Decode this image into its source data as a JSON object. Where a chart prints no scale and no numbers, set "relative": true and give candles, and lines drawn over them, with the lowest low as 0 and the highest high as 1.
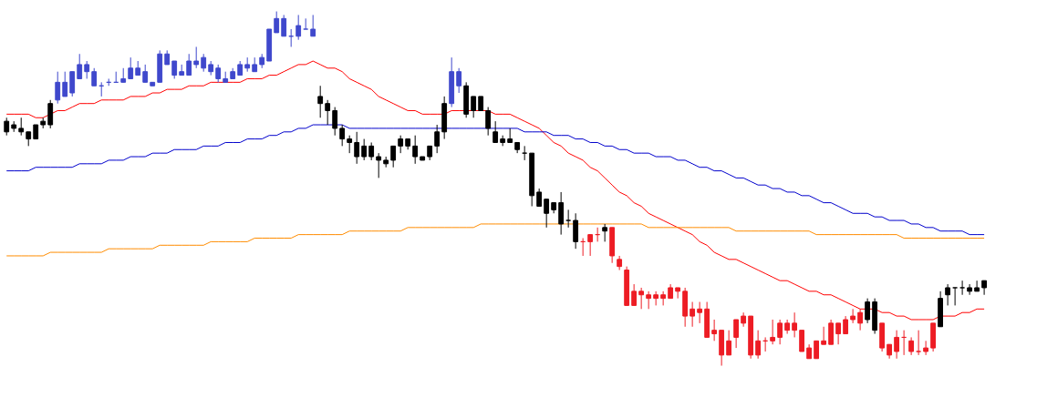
{
  "chart_data": {
    "type": "candlestick",
    "relative": true,
    "categories": [
      null,
      null,
      null,
      null,
      null,
      null,
      null,
      null,
      null,
      null,
      null,
      null,
      null,
      null,
      null,
      null,
      null,
      null,
      null,
      null,
      null,
      null,
      null,
      null,
      null,
      null,
      null,
      null,
      null,
      null,
      null,
      null,
      null,
      null,
      null,
      null,
      null,
      null,
      null,
      null,
      null,
      null,
      null,
      null,
      null,
      null,
      null,
      null,
      null,
      null,
      null,
      null,
      null,
      null,
      null,
      null,
      null,
      null,
      null,
      null,
      null,
      null,
      null,
      null,
      null,
      null,
      null,
      null,
      null,
      null,
      null,
      null,
      null,
      null,
      null,
      null,
      null,
      null,
      null,
      null,
      null,
      null,
      null,
      null,
      null,
      null,
      null,
      null,
      null,
      null,
      null,
      null,
      null,
      null,
      null,
      null,
      null,
      null,
      null,
      null,
      null,
      null,
      null,
      null,
      null,
      null,
      null,
      null,
      null,
      null,
      null,
      null,
      null,
      null,
      null,
      null,
      null,
      null,
      null,
      null,
      null,
      null,
      null,
      null,
      null,
      null,
      null,
      null,
      null,
      null,
      null,
      null,
      null,
      null,
      null
    ],
    "ohlc": [
      [
        0.69,
        0.7,
        0.65,
        0.66
      ],
      [
        0.68,
        0.69,
        0.66,
        0.67
      ],
      [
        0.67,
        0.7,
        0.65,
        0.66
      ],
      [
        0.66,
        0.66,
        0.62,
        0.64
      ],
      [
        0.68,
        0.68,
        0.64,
        0.64
      ],
      [
        0.69,
        0.7,
        0.67,
        0.68
      ],
      [
        0.74,
        0.75,
        0.67,
        0.68
      ],
      [
        0.75,
        0.83,
        0.74,
        0.8
      ],
      [
        0.76,
        0.83,
        0.76,
        0.8
      ],
      [
        0.77,
        0.83,
        0.76,
        0.83
      ],
      [
        0.81,
        0.88,
        0.81,
        0.85
      ],
      [
        0.83,
        0.86,
        0.81,
        0.85
      ],
      [
        0.79,
        0.84,
        0.79,
        0.83
      ],
      [
        0.79,
        0.8,
        0.76,
        0.79
      ],
      [
        0.8,
        0.81,
        0.79,
        0.8
      ],
      [
        0.8,
        0.83,
        0.8,
        0.8
      ],
      [
        0.8,
        0.84,
        0.8,
        0.81
      ],
      [
        0.81,
        0.87,
        0.81,
        0.84
      ],
      [
        0.82,
        0.86,
        0.82,
        0.84
      ],
      [
        0.8,
        0.85,
        0.8,
        0.83
      ],
      [
        0.79,
        0.8,
        0.79,
        0.8
      ],
      [
        0.8,
        0.89,
        0.8,
        0.88
      ],
      [
        0.85,
        0.89,
        0.85,
        0.88
      ],
      [
        0.82,
        0.86,
        0.81,
        0.86
      ],
      [
        0.82,
        0.85,
        0.82,
        0.83
      ],
      [
        0.82,
        0.88,
        0.82,
        0.86
      ],
      [
        0.85,
        0.9,
        0.84,
        0.86
      ],
      [
        0.84,
        0.88,
        0.83,
        0.87
      ],
      [
        0.83,
        0.86,
        0.82,
        0.85
      ],
      [
        0.81,
        0.85,
        0.8,
        0.84
      ],
      [
        0.8,
        0.83,
        0.8,
        0.81
      ],
      [
        0.81,
        0.84,
        0.81,
        0.83
      ],
      [
        0.82,
        0.86,
        0.82,
        0.85
      ],
      [
        0.84,
        0.87,
        0.83,
        0.85
      ],
      [
        0.83,
        0.87,
        0.83,
        0.85
      ],
      [
        0.85,
        0.88,
        0.84,
        0.87
      ],
      [
        0.86,
        0.95,
        0.86,
        0.95
      ],
      [
        0.94,
        1.0,
        0.94,
        0.98
      ],
      [
        0.93,
        0.99,
        0.93,
        0.98
      ],
      [
        0.93,
        0.95,
        0.9,
        0.93
      ],
      [
        0.93,
        0.99,
        0.92,
        0.96
      ],
      [
        0.95,
        0.98,
        0.95,
        0.95
      ],
      [
        0.93,
        0.99,
        0.93,
        0.95
      ],
      [
        0.76,
        0.79,
        0.7,
        0.74
      ],
      [
        0.74,
        0.75,
        0.68,
        0.72
      ],
      [
        0.72,
        0.73,
        0.65,
        0.67
      ],
      [
        0.67,
        0.68,
        0.62,
        0.64
      ],
      [
        0.64,
        0.65,
        0.6,
        0.63
      ],
      [
        0.63,
        0.66,
        0.57,
        0.59
      ],
      [
        0.62,
        0.64,
        0.58,
        0.59
      ],
      [
        0.62,
        0.63,
        0.58,
        0.59
      ],
      [
        0.59,
        0.6,
        0.53,
        0.58
      ],
      [
        0.58,
        0.59,
        0.56,
        0.57
      ],
      [
        0.62,
        0.62,
        0.56,
        0.58
      ],
      [
        0.64,
        0.65,
        0.6,
        0.62
      ],
      [
        0.64,
        0.64,
        0.61,
        0.62
      ],
      [
        0.62,
        0.65,
        0.57,
        0.59
      ],
      [
        0.59,
        0.59,
        0.58,
        0.58
      ],
      [
        0.62,
        0.62,
        0.58,
        0.59
      ],
      [
        0.66,
        0.68,
        0.6,
        0.62
      ],
      [
        0.74,
        0.76,
        0.64,
        0.66
      ],
      [
        0.74,
        0.87,
        0.73,
        0.83
      ],
      [
        0.79,
        0.84,
        0.77,
        0.83
      ],
      [
        0.79,
        0.8,
        0.7,
        0.71
      ],
      [
        0.76,
        0.76,
        0.7,
        0.72
      ],
      [
        0.76,
        0.76,
        0.72,
        0.72
      ],
      [
        0.72,
        0.73,
        0.65,
        0.67
      ],
      [
        0.66,
        0.69,
        0.63,
        0.63
      ],
      [
        0.64,
        0.65,
        0.62,
        0.63
      ],
      [
        0.64,
        0.67,
        0.63,
        0.63
      ],
      [
        0.63,
        0.63,
        0.6,
        0.61
      ],
      [
        0.6,
        0.62,
        0.58,
        0.6
      ],
      [
        0.6,
        0.6,
        0.45,
        0.48
      ],
      [
        0.49,
        0.5,
        0.45,
        0.45
      ],
      [
        0.47,
        0.47,
        0.39,
        0.43
      ],
      [
        0.46,
        0.46,
        0.43,
        0.44
      ],
      [
        0.46,
        0.49,
        0.37,
        0.4
      ],
      [
        0.41,
        0.44,
        0.39,
        0.41
      ],
      [
        0.41,
        0.43,
        0.33,
        0.35
      ],
      [
        0.35,
        0.36,
        0.31,
        0.35
      ],
      [
        0.37,
        0.37,
        0.31,
        0.35
      ],
      [
        0.37,
        0.39,
        0.35,
        0.37
      ],
      [
        0.39,
        0.4,
        0.35,
        0.38
      ],
      [
        0.39,
        0.39,
        0.29,
        0.31
      ],
      [
        0.3,
        0.31,
        0.27,
        0.28
      ],
      [
        0.27,
        0.28,
        0.17,
        0.17
      ],
      [
        0.21,
        0.23,
        0.17,
        0.17
      ],
      [
        0.21,
        0.22,
        0.16,
        0.2
      ],
      [
        0.2,
        0.21,
        0.16,
        0.19
      ],
      [
        0.2,
        0.21,
        0.17,
        0.19
      ],
      [
        0.2,
        0.21,
        0.17,
        0.19
      ],
      [
        0.22,
        0.23,
        0.19,
        0.19
      ],
      [
        0.22,
        0.22,
        0.19,
        0.21
      ],
      [
        0.21,
        0.22,
        0.11,
        0.14
      ],
      [
        0.16,
        0.18,
        0.11,
        0.14
      ],
      [
        0.16,
        0.18,
        0.12,
        0.15
      ],
      [
        0.16,
        0.18,
        0.08,
        0.08
      ],
      [
        0.1,
        0.13,
        0.07,
        0.09
      ],
      [
        0.1,
        0.1,
        0.0,
        0.03
      ],
      [
        0.07,
        0.1,
        0.03,
        0.03
      ],
      [
        0.13,
        0.13,
        0.05,
        0.08
      ],
      [
        0.14,
        0.15,
        0.11,
        0.12
      ],
      [
        0.14,
        0.14,
        0.02,
        0.03
      ],
      [
        0.07,
        0.1,
        0.02,
        0.03
      ],
      [
        0.07,
        0.08,
        0.04,
        0.07
      ],
      [
        0.08,
        0.13,
        0.06,
        0.07
      ],
      [
        0.12,
        0.13,
        0.06,
        0.08
      ],
      [
        0.12,
        0.13,
        0.09,
        0.1
      ],
      [
        0.12,
        0.15,
        0.08,
        0.1
      ],
      [
        0.1,
        0.1,
        0.04,
        0.04
      ],
      [
        0.05,
        0.06,
        0.02,
        0.02
      ],
      [
        0.07,
        0.07,
        0.02,
        0.02
      ],
      [
        0.07,
        0.11,
        0.06,
        0.06
      ],
      [
        0.12,
        0.13,
        0.06,
        0.06
      ],
      [
        0.12,
        0.12,
        0.06,
        0.09
      ],
      [
        0.13,
        0.14,
        0.09,
        0.09
      ],
      [
        0.14,
        0.16,
        0.12,
        0.13
      ],
      [
        0.15,
        0.16,
        0.1,
        0.12
      ],
      [
        0.18,
        0.19,
        0.12,
        0.13
      ],
      [
        0.18,
        0.19,
        0.09,
        0.1
      ],
      [
        0.12,
        0.12,
        0.04,
        0.05
      ],
      [
        0.06,
        0.06,
        0.02,
        0.03
      ],
      [
        0.08,
        0.1,
        0.02,
        0.04
      ],
      [
        0.08,
        0.1,
        0.03,
        0.08
      ],
      [
        0.07,
        0.08,
        0.03,
        0.04
      ],
      [
        0.04,
        0.1,
        0.03,
        0.04
      ],
      [
        0.05,
        0.07,
        0.03,
        0.04
      ],
      [
        0.12,
        0.12,
        0.04,
        0.05
      ],
      [
        0.19,
        0.21,
        0.11,
        0.11
      ],
      [
        0.22,
        0.23,
        0.17,
        0.2
      ],
      [
        0.22,
        0.22,
        0.17,
        0.22
      ],
      [
        0.22,
        0.24,
        0.2,
        0.22
      ],
      [
        0.22,
        0.23,
        0.2,
        0.21
      ],
      [
        0.22,
        0.24,
        0.21,
        0.21
      ],
      [
        0.24,
        0.24,
        0.2,
        0.22
      ]
    ],
    "colors": [
      "#000000",
      "#000000",
      "#000000",
      "#000000",
      "#000000",
      "#000000",
      "#000000",
      "#3f48cc",
      "#3f48cc",
      "#3f48cc",
      "#3f48cc",
      "#3f48cc",
      "#3f48cc",
      "#3f48cc",
      "#3f48cc",
      "#3f48cc",
      "#3f48cc",
      "#3f48cc",
      "#3f48cc",
      "#3f48cc",
      "#3f48cc",
      "#3f48cc",
      "#3f48cc",
      "#3f48cc",
      "#3f48cc",
      "#3f48cc",
      "#3f48cc",
      "#3f48cc",
      "#3f48cc",
      "#3f48cc",
      "#3f48cc",
      "#3f48cc",
      "#3f48cc",
      "#3f48cc",
      "#3f48cc",
      "#3f48cc",
      "#3f48cc",
      "#3f48cc",
      "#3f48cc",
      "#3f48cc",
      "#3f48cc",
      "#3f48cc",
      "#3f48cc",
      "#000000",
      "#000000",
      "#000000",
      "#000000",
      "#000000",
      "#000000",
      "#000000",
      "#000000",
      "#000000",
      "#000000",
      "#000000",
      "#000000",
      "#000000",
      "#000000",
      "#000000",
      "#000000",
      "#000000",
      "#000000",
      "#3f48cc",
      "#3f48cc",
      "#000000",
      "#000000",
      "#000000",
      "#000000",
      "#000000",
      "#000000",
      "#000000",
      "#000000",
      "#000000",
      "#000000",
      "#000000",
      "#000000",
      "#000000",
      "#000000",
      "#000000",
      "#000000",
      "#ed1c24",
      "#ed1c24",
      "#ed1c24",
      "#000000",
      "#ed1c24",
      "#ed1c24",
      "#ed1c24",
      "#ed1c24",
      "#ed1c24",
      "#ed1c24",
      "#ed1c24",
      "#ed1c24",
      "#ed1c24",
      "#ed1c24",
      "#ed1c24",
      "#ed1c24",
      "#ed1c24",
      "#ed1c24",
      "#ed1c24",
      "#ed1c24",
      "#ed1c24",
      "#ed1c24",
      "#ed1c24",
      "#ed1c24",
      "#ed1c24",
      "#ed1c24",
      "#ed1c24",
      "#ed1c24",
      "#ed1c24",
      "#ed1c24",
      "#ed1c24",
      "#ed1c24",
      "#ed1c24",
      "#ed1c24",
      "#ed1c24",
      "#ed1c24",
      "#ed1c24",
      "#ed1c24",
      "#ed1c24",
      "#000000",
      "#000000",
      "#ed1c24",
      "#ed1c24",
      "#ed1c24",
      "#ed1c24",
      "#ed1c24",
      "#ed1c24",
      "#ed1c24",
      "#ed1c24",
      "#000000",
      "#000000",
      "#000000",
      "#000000",
      "#000000",
      "#000000",
      "#000000"
    ],
    "series": [
      {
        "type": "line",
        "color": "#ff0000",
        "values": [
          0.71,
          0.71,
          0.71,
          0.71,
          0.7,
          0.7,
          0.71,
          0.72,
          0.72,
          0.73,
          0.74,
          0.74,
          0.74,
          0.75,
          0.75,
          0.75,
          0.75,
          0.76,
          0.76,
          0.76,
          0.77,
          0.77,
          0.78,
          0.78,
          0.78,
          0.79,
          0.79,
          0.79,
          0.8,
          0.8,
          0.8,
          0.8,
          0.8,
          0.81,
          0.81,
          0.81,
          0.82,
          0.82,
          0.83,
          0.84,
          0.85,
          0.85,
          0.86,
          0.85,
          0.84,
          0.84,
          0.83,
          0.81,
          0.8,
          0.79,
          0.78,
          0.76,
          0.75,
          0.74,
          0.73,
          0.72,
          0.72,
          0.71,
          0.71,
          0.71,
          0.71,
          0.72,
          0.72,
          0.72,
          0.72,
          0.72,
          0.72,
          0.71,
          0.71,
          0.71,
          0.7,
          0.69,
          0.68,
          0.67,
          0.65,
          0.63,
          0.62,
          0.6,
          0.59,
          0.58,
          0.56,
          0.55,
          0.53,
          0.51,
          0.49,
          0.48,
          0.46,
          0.45,
          0.43,
          0.42,
          0.41,
          0.4,
          0.39,
          0.38,
          0.37,
          0.35,
          0.34,
          0.32,
          0.31,
          0.3,
          0.3,
          0.29,
          0.28,
          0.27,
          0.26,
          0.25,
          0.24,
          0.24,
          0.23,
          0.22,
          0.21,
          0.21,
          0.2,
          0.2,
          0.19,
          0.18,
          0.17,
          0.16,
          0.16,
          0.16,
          0.15,
          0.15,
          0.14,
          0.14,
          0.13,
          0.13,
          0.13,
          0.13,
          0.14,
          0.14,
          0.14,
          0.15,
          0.15,
          0.16,
          0.16
        ]
      },
      {
        "type": "line",
        "color": "#0000cc",
        "values": [
          0.55,
          0.55,
          0.55,
          0.55,
          0.56,
          0.56,
          0.56,
          0.56,
          0.56,
          0.56,
          0.57,
          0.57,
          0.57,
          0.57,
          0.58,
          0.58,
          0.58,
          0.59,
          0.59,
          0.59,
          0.6,
          0.6,
          0.6,
          0.61,
          0.61,
          0.61,
          0.61,
          0.62,
          0.62,
          0.62,
          0.63,
          0.63,
          0.63,
          0.64,
          0.64,
          0.64,
          0.65,
          0.65,
          0.66,
          0.66,
          0.67,
          0.67,
          0.68,
          0.68,
          0.68,
          0.68,
          0.68,
          0.67,
          0.67,
          0.67,
          0.67,
          0.67,
          0.67,
          0.67,
          0.67,
          0.67,
          0.67,
          0.67,
          0.67,
          0.67,
          0.67,
          0.67,
          0.67,
          0.67,
          0.67,
          0.67,
          0.67,
          0.67,
          0.67,
          0.67,
          0.67,
          0.66,
          0.66,
          0.66,
          0.66,
          0.65,
          0.65,
          0.65,
          0.64,
          0.64,
          0.63,
          0.63,
          0.62,
          0.62,
          0.61,
          0.61,
          0.6,
          0.6,
          0.6,
          0.59,
          0.59,
          0.59,
          0.58,
          0.58,
          0.57,
          0.56,
          0.56,
          0.55,
          0.55,
          0.54,
          0.53,
          0.53,
          0.52,
          0.51,
          0.51,
          0.5,
          0.5,
          0.49,
          0.49,
          0.48,
          0.48,
          0.47,
          0.46,
          0.46,
          0.45,
          0.44,
          0.43,
          0.43,
          0.43,
          0.42,
          0.42,
          0.41,
          0.41,
          0.41,
          0.4,
          0.4,
          0.39,
          0.39,
          0.38,
          0.38,
          0.38,
          0.38,
          0.37,
          0.37,
          0.37
        ]
      },
      {
        "type": "line",
        "color": "#ff8c00",
        "values": [
          0.31,
          0.31,
          0.31,
          0.31,
          0.31,
          0.31,
          0.32,
          0.32,
          0.32,
          0.32,
          0.32,
          0.32,
          0.32,
          0.32,
          0.33,
          0.33,
          0.33,
          0.33,
          0.33,
          0.33,
          0.33,
          0.34,
          0.34,
          0.34,
          0.34,
          0.34,
          0.34,
          0.34,
          0.35,
          0.35,
          0.35,
          0.35,
          0.35,
          0.35,
          0.36,
          0.36,
          0.36,
          0.36,
          0.36,
          0.36,
          0.37,
          0.37,
          0.37,
          0.37,
          0.37,
          0.37,
          0.37,
          0.38,
          0.38,
          0.38,
          0.38,
          0.38,
          0.38,
          0.38,
          0.38,
          0.39,
          0.39,
          0.39,
          0.39,
          0.39,
          0.39,
          0.39,
          0.39,
          0.39,
          0.39,
          0.4,
          0.4,
          0.4,
          0.4,
          0.4,
          0.4,
          0.4,
          0.4,
          0.4,
          0.4,
          0.4,
          0.4,
          0.4,
          0.4,
          0.4,
          0.4,
          0.4,
          0.4,
          0.4,
          0.4,
          0.4,
          0.4,
          0.4,
          0.39,
          0.39,
          0.39,
          0.39,
          0.39,
          0.39,
          0.39,
          0.39,
          0.39,
          0.39,
          0.39,
          0.39,
          0.38,
          0.38,
          0.38,
          0.38,
          0.38,
          0.38,
          0.38,
          0.38,
          0.38,
          0.38,
          0.38,
          0.37,
          0.37,
          0.37,
          0.37,
          0.37,
          0.37,
          0.37,
          0.37,
          0.37,
          0.37,
          0.37,
          0.37,
          0.36,
          0.36,
          0.36,
          0.36,
          0.36,
          0.36,
          0.36,
          0.36,
          0.36,
          0.36,
          0.36,
          0.36
        ]
      }
    ]
  }
}
